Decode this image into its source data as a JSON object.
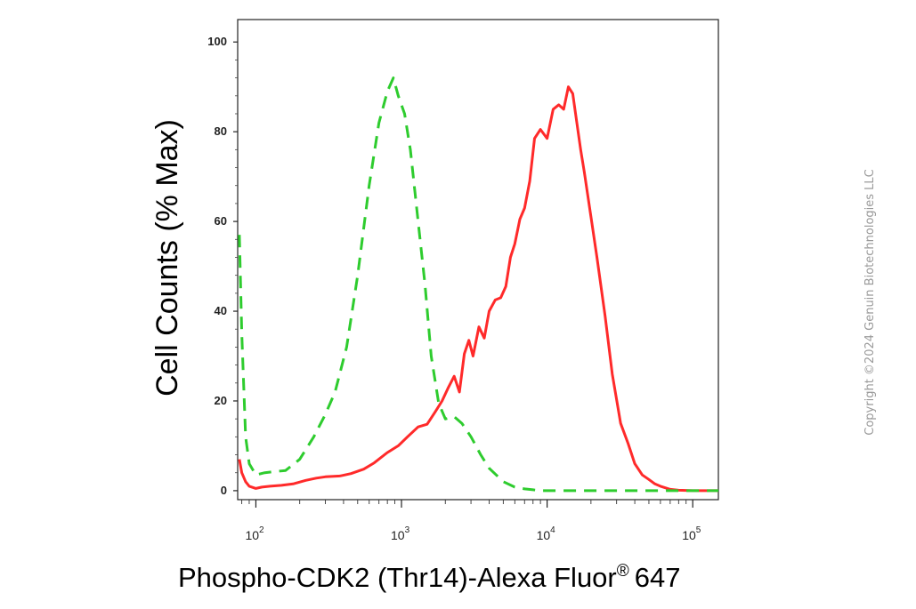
{
  "chart_data": {
    "type": "line",
    "ylabel": "Cell Counts (% Max)",
    "xlabel": "Phospho-CDK2 (Thr14)-Alexa Fluor",
    "xlabel_superscript": "®",
    "xlabel_suffix": "647",
    "x_scale": "log",
    "xlim": [
      75,
      150000
    ],
    "ylim": [
      -2,
      105
    ],
    "x_ticks": [
      {
        "base": "10",
        "exp": "2"
      },
      {
        "base": "10",
        "exp": "3"
      },
      {
        "base": "10",
        "exp": "4"
      },
      {
        "base": "10",
        "exp": "5"
      }
    ],
    "y_ticks": [
      "0",
      "20",
      "40",
      "60",
      "80",
      "100"
    ],
    "grid": false,
    "legend": "none",
    "series": [
      {
        "color": "#ff2a2a",
        "dash": "solid",
        "x": [
          77,
          80,
          85,
          90,
          100,
          110,
          125,
          150,
          180,
          220,
          260,
          300,
          380,
          450,
          550,
          650,
          800,
          950,
          1100,
          1300,
          1500,
          1700,
          1900,
          2100,
          2300,
          2500,
          2700,
          2900,
          3100,
          3400,
          3700,
          4000,
          4400,
          4800,
          5200,
          5600,
          6000,
          6500,
          7000,
          7600,
          8200,
          9000,
          10000,
          11000,
          12000,
          13000,
          14000,
          15000,
          16000,
          17000,
          18000,
          20000,
          22000,
          25000,
          28000,
          32000,
          36000,
          40000,
          45000,
          50000,
          55000,
          60000,
          70000,
          80000,
          100000,
          150000
        ],
        "y": [
          7,
          4,
          2,
          1,
          0.5,
          0.8,
          1,
          1.2,
          1.5,
          2.3,
          2.8,
          3.1,
          3.3,
          3.8,
          4.8,
          6.2,
          8.5,
          10,
          12,
          14.2,
          14.8,
          17.5,
          20,
          23,
          25.5,
          22,
          30.5,
          33.5,
          30,
          36.5,
          34,
          40,
          42.5,
          43,
          45.5,
          52,
          55,
          60.5,
          63,
          69,
          78.5,
          80.5,
          78.5,
          85,
          86,
          85,
          90,
          88.5,
          82,
          76,
          71,
          61,
          52,
          39,
          26,
          15,
          10.5,
          6,
          3.5,
          2.5,
          1.5,
          1,
          0.3,
          0.1,
          0,
          0
        ]
      },
      {
        "color": "#2ecc2e",
        "dash": "dashed",
        "x": [
          77,
          80,
          85,
          90,
          100,
          115,
          130,
          160,
          200,
          250,
          300,
          350,
          420,
          500,
          600,
          700,
          800,
          880,
          950,
          1050,
          1150,
          1300,
          1450,
          1600,
          1800,
          2000,
          2300,
          2600,
          3000,
          3500,
          4000,
          5000,
          6000,
          7000,
          8000,
          9000,
          10000,
          15000,
          20000,
          30000,
          150000
        ],
        "y": [
          57,
          35,
          12,
          6,
          3.5,
          4,
          4.2,
          4.5,
          7,
          12,
          17,
          22,
          32,
          48,
          68,
          82,
          89,
          92,
          88,
          84,
          76,
          60,
          46,
          30,
          19.5,
          16,
          16.5,
          15,
          12,
          8,
          5,
          2,
          0.8,
          0.4,
          0.2,
          0,
          0,
          0,
          0,
          0,
          0
        ]
      }
    ]
  },
  "watermark": "Copyright ©2024 Genuin Biotechnologies LLC"
}
